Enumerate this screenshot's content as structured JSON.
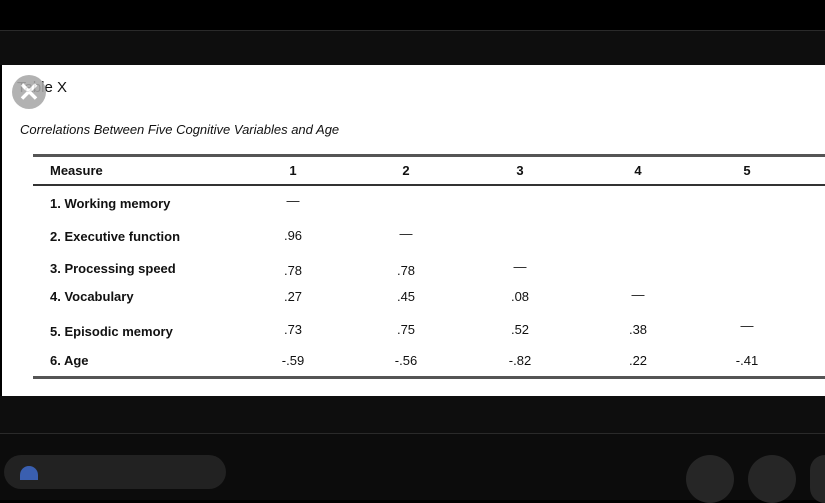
{
  "table": {
    "label": "Table X",
    "caption": "Correlations Between Five Cognitive Variables and Age",
    "columns": [
      "Measure",
      "1",
      "2",
      "3",
      "4",
      "5"
    ],
    "rows": [
      {
        "measure": "1. Working memory",
        "values": [
          "—",
          "",
          "",
          "",
          ""
        ]
      },
      {
        "measure": "2. Executive function",
        "values": [
          ".96",
          "—",
          "",
          "",
          ""
        ]
      },
      {
        "measure": "3. Processing speed",
        "values": [
          ".78",
          ".78",
          "—",
          "",
          ""
        ]
      },
      {
        "measure": "4. Vocabulary",
        "values": [
          ".27",
          ".45",
          ".08",
          "—",
          ""
        ]
      },
      {
        "measure": "5. Episodic memory",
        "values": [
          ".73",
          ".75",
          ".52",
          ".38",
          "—"
        ]
      },
      {
        "measure": "6. Age",
        "values": [
          "-.59",
          "-.56",
          "-.82",
          ".22",
          "-.41"
        ]
      }
    ]
  },
  "overlay": {
    "close_glyph": "✕",
    "icon": "close-icon"
  },
  "colors": {
    "background": "#000000",
    "paper": "#ffffff",
    "text": "#111111",
    "accent": "#3a5fb0"
  }
}
